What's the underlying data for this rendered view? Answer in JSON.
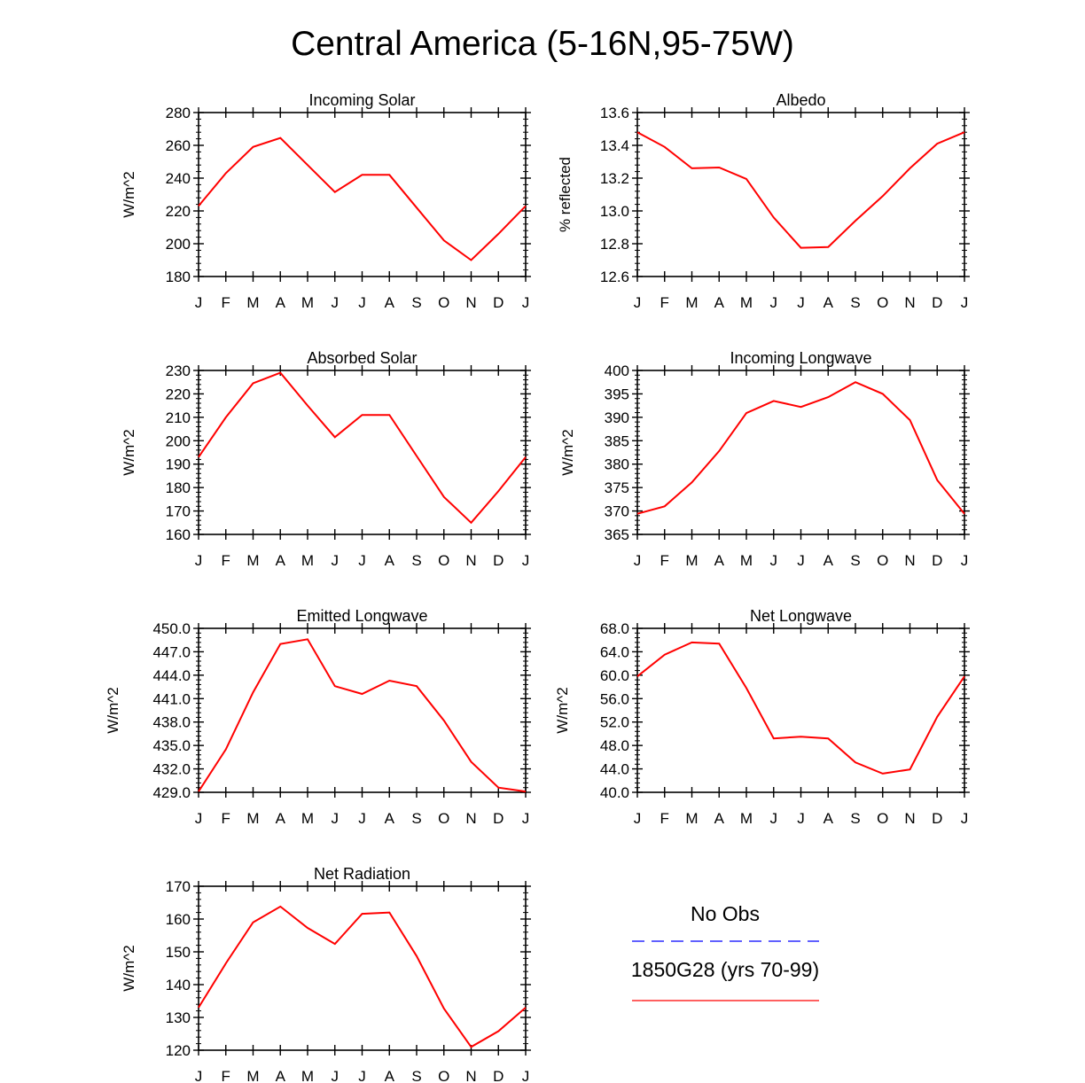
{
  "title": "Central America (5-16N,95-75W)",
  "colors": {
    "model_line": "#ff0000",
    "obs_line": "#0000ff",
    "axis": "#000000"
  },
  "legend": {
    "obs_label": "No Obs",
    "model_label": "1850G28 (yrs 70-99)"
  },
  "chart_data": [
    {
      "type": "line",
      "title": "Incoming Solar",
      "ylabel": "W/m^2",
      "ylim": [
        180,
        280
      ],
      "yticks": [
        "180",
        "200",
        "220",
        "240",
        "260",
        "280"
      ],
      "categories": [
        "J",
        "F",
        "M",
        "A",
        "M",
        "J",
        "J",
        "A",
        "S",
        "O",
        "N",
        "D",
        "J"
      ],
      "series": [
        {
          "name": "1850G28 (yrs 70-99)",
          "values": [
            223,
            243,
            259,
            264.5,
            248,
            231.5,
            242,
            242,
            222,
            202,
            190,
            206,
            223
          ]
        }
      ]
    },
    {
      "type": "line",
      "title": "Albedo",
      "ylabel": "% reflected",
      "ylim": [
        12.6,
        13.6
      ],
      "yticks": [
        "12.6",
        "12.8",
        "13.0",
        "13.2",
        "13.4",
        "13.6"
      ],
      "categories": [
        "J",
        "F",
        "M",
        "A",
        "M",
        "J",
        "J",
        "A",
        "S",
        "O",
        "N",
        "D",
        "J"
      ],
      "series": [
        {
          "name": "1850G28 (yrs 70-99)",
          "values": [
            13.48,
            13.39,
            13.26,
            13.265,
            13.195,
            12.96,
            12.775,
            12.78,
            12.94,
            13.09,
            13.26,
            13.41,
            13.48
          ]
        }
      ]
    },
    {
      "type": "line",
      "title": "Absorbed Solar",
      "ylabel": "W/m^2",
      "ylim": [
        160,
        230
      ],
      "yticks": [
        "160",
        "170",
        "180",
        "190",
        "200",
        "210",
        "220",
        "230"
      ],
      "categories": [
        "J",
        "F",
        "M",
        "A",
        "M",
        "J",
        "J",
        "A",
        "S",
        "O",
        "N",
        "D",
        "J"
      ],
      "series": [
        {
          "name": "1850G28 (yrs 70-99)",
          "values": [
            193,
            210,
            224.5,
            229,
            215,
            201.5,
            211,
            211,
            193.5,
            176,
            165,
            178.5,
            193
          ]
        }
      ]
    },
    {
      "type": "line",
      "title": "Incoming Longwave",
      "ylabel": "W/m^2",
      "ylim": [
        365,
        400
      ],
      "yticks": [
        "365",
        "370",
        "375",
        "380",
        "385",
        "390",
        "395",
        "400"
      ],
      "categories": [
        "J",
        "F",
        "M",
        "A",
        "M",
        "J",
        "J",
        "A",
        "S",
        "O",
        "N",
        "D",
        "J"
      ],
      "series": [
        {
          "name": "1850G28 (yrs 70-99)",
          "values": [
            369.4,
            371,
            376.1,
            382.8,
            390.9,
            393.5,
            392.2,
            394.3,
            397.5,
            395,
            389.4,
            376.6,
            369.4
          ]
        }
      ]
    },
    {
      "type": "line",
      "title": "Emitted Longwave",
      "ylabel": "W/m^2",
      "ylim": [
        429,
        450
      ],
      "yticks": [
        "429.0",
        "432.0",
        "435.0",
        "438.0",
        "441.0",
        "444.0",
        "447.0",
        "450.0"
      ],
      "categories": [
        "J",
        "F",
        "M",
        "A",
        "M",
        "J",
        "J",
        "A",
        "S",
        "O",
        "N",
        "D",
        "J"
      ],
      "series": [
        {
          "name": "1850G28 (yrs 70-99)",
          "values": [
            429.1,
            434.5,
            441.8,
            448,
            448.6,
            442.6,
            441.6,
            443.3,
            442.6,
            438.2,
            432.9,
            429.6,
            429.1
          ]
        }
      ]
    },
    {
      "type": "line",
      "title": "Net Longwave",
      "ylabel": "W/m^2",
      "ylim": [
        40,
        68
      ],
      "yticks": [
        "40.0",
        "44.0",
        "48.0",
        "52.0",
        "56.0",
        "60.0",
        "64.0",
        "68.0"
      ],
      "categories": [
        "J",
        "F",
        "M",
        "A",
        "M",
        "J",
        "J",
        "A",
        "S",
        "O",
        "N",
        "D",
        "J"
      ],
      "series": [
        {
          "name": "1850G28 (yrs 70-99)",
          "values": [
            59.8,
            63.5,
            65.6,
            65.4,
            57.8,
            49.2,
            49.5,
            49.2,
            45.1,
            43.2,
            43.9,
            52.9,
            59.8
          ]
        }
      ]
    },
    {
      "type": "line",
      "title": "Net Radiation",
      "ylabel": "W/m^2",
      "ylim": [
        120,
        170
      ],
      "yticks": [
        "120",
        "130",
        "140",
        "150",
        "160",
        "170"
      ],
      "categories": [
        "J",
        "F",
        "M",
        "A",
        "M",
        "J",
        "J",
        "A",
        "S",
        "O",
        "N",
        "D",
        "J"
      ],
      "series": [
        {
          "name": "1850G28 (yrs 70-99)",
          "values": [
            133,
            146.5,
            159,
            163.8,
            157.3,
            152.4,
            161.6,
            162,
            148.7,
            132.7,
            121,
            125.8,
            133
          ]
        }
      ]
    }
  ]
}
